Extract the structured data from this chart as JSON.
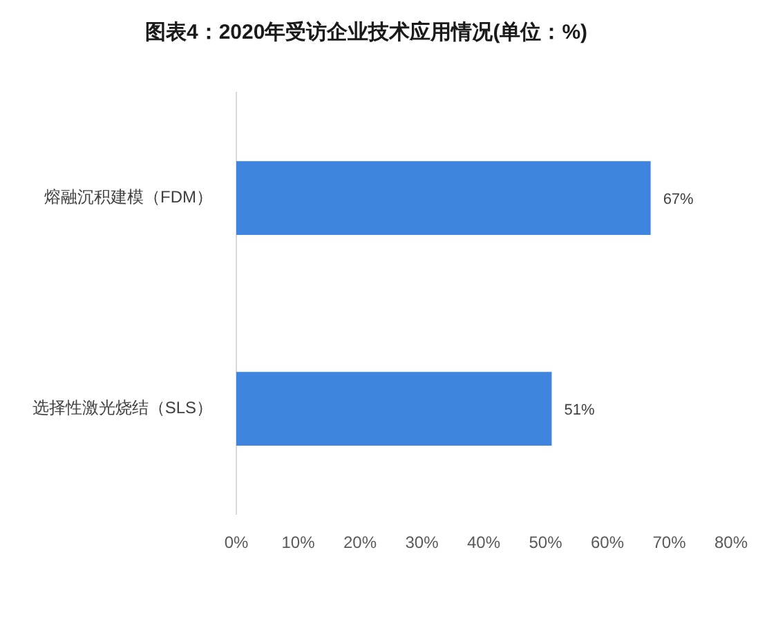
{
  "chart_data": {
    "type": "bar",
    "orientation": "horizontal",
    "title": "图表4：2020年受访企业技术应用情况(单位：%)",
    "categories": [
      "熔融沉积建模（FDM）",
      "选择性激光烧结（SLS）"
    ],
    "values": [
      67,
      51
    ],
    "color": "#3f85e0",
    "value_labels": [
      "67%",
      "51%"
    ],
    "xlim": [
      0,
      80
    ],
    "xticks": [
      {
        "value": 0,
        "label": "0%"
      },
      {
        "value": 10,
        "label": "10%"
      },
      {
        "value": 20,
        "label": "20%"
      },
      {
        "value": 30,
        "label": "30%"
      },
      {
        "value": 40,
        "label": "40%"
      },
      {
        "value": 50,
        "label": "50%"
      },
      {
        "value": 60,
        "label": "60%"
      },
      {
        "value": 70,
        "label": "70%"
      },
      {
        "value": 80,
        "label": "80%"
      }
    ],
    "grid": false,
    "legend": false
  }
}
